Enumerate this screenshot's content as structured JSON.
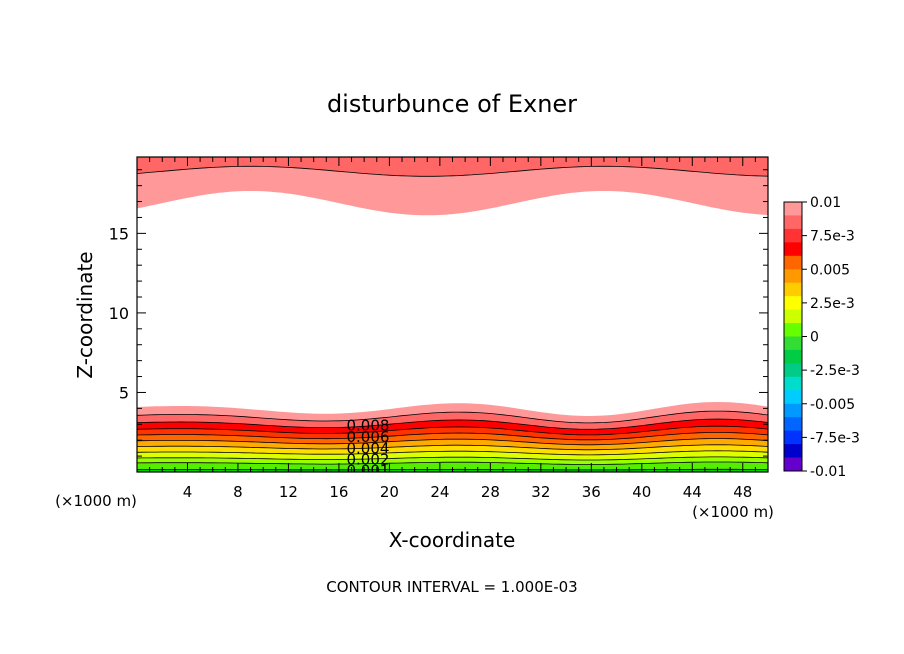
{
  "chart_data": {
    "type": "contour",
    "title": "disturbunce of Exner",
    "xlabel": "X-coordinate",
    "ylabel": "Z-coordinate",
    "x_unit": "(×1000 m)",
    "footer": "CONTOUR INTERVAL = 1.000E-03",
    "xlim": [
      0,
      50
    ],
    "ylim": [
      0,
      19.8
    ],
    "x_ticks": [
      "4",
      "8",
      "12",
      "16",
      "20",
      "24",
      "28",
      "32",
      "36",
      "40",
      "44",
      "48"
    ],
    "x_tick_values": [
      4,
      8,
      12,
      16,
      20,
      24,
      28,
      32,
      36,
      40,
      44,
      48
    ],
    "y_ticks": [
      "5",
      "10",
      "15"
    ],
    "y_tick_values": [
      5,
      10,
      15
    ],
    "contour_labels": [
      "0.008",
      "0.006",
      "0.004",
      "0.002",
      "0.001"
    ],
    "colorbar": {
      "labels": [
        "0.01",
        "7.5e-3",
        "0.005",
        "2.5e-3",
        "0",
        "-2.5e-3",
        "-0.005",
        "-7.5e-3",
        "-0.01"
      ],
      "range": [
        -0.01,
        0.01
      ],
      "bands": [
        "#ff9999",
        "#ff6666",
        "#ff3333",
        "#ff0000",
        "#ff6600",
        "#ff9900",
        "#ffcc00",
        "#ffff00",
        "#ccff00",
        "#66ff00",
        "#33dd33",
        "#00cc44",
        "#00cc88",
        "#00ddcc",
        "#00ccff",
        "#0099ff",
        "#0066ff",
        "#0033ff",
        "#0000cc",
        "#6600cc"
      ]
    },
    "lower_bands": [
      {
        "level": 0.001,
        "color": "#00cc00"
      },
      {
        "level": 0.002,
        "color": "#55ee00"
      },
      {
        "level": 0.003,
        "color": "#99ff00"
      },
      {
        "level": 0.004,
        "color": "#ddff00"
      },
      {
        "level": 0.005,
        "color": "#ffdd00"
      },
      {
        "level": 0.006,
        "color": "#ffaa00"
      },
      {
        "level": 0.007,
        "color": "#ff6600"
      },
      {
        "level": 0.008,
        "color": "#ff3300"
      },
      {
        "level": 0.009,
        "color": "#ff0000"
      },
      {
        "level": 0.01,
        "color": "#ff6666"
      },
      {
        "level": 0.011,
        "color": "#ff9999"
      }
    ],
    "upper_bands": [
      {
        "color": "#ff9999"
      },
      {
        "color": "#ff6666"
      }
    ]
  }
}
